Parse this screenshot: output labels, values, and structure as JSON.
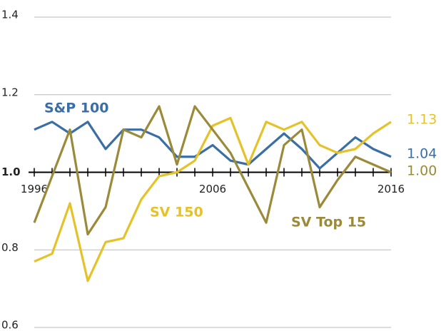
{
  "chart_data": {
    "type": "line",
    "x": [
      1996,
      1997,
      1998,
      1999,
      2000,
      2001,
      2002,
      2003,
      2004,
      2005,
      2006,
      2007,
      2008,
      2009,
      2010,
      2011,
      2012,
      2013,
      2014,
      2015,
      2016
    ],
    "xlim": [
      1996,
      2016
    ],
    "xticks": [
      1996,
      2006,
      2016
    ],
    "ylim": [
      0.6,
      1.4
    ],
    "yticks": [
      0.6,
      0.8,
      {
        "value": 1.0,
        "label": "1.0"
      },
      1.2,
      1.4
    ],
    "grid": true,
    "series": [
      {
        "name": "S&P 100",
        "color": "#3a6ea5",
        "end_label": "1.04",
        "values": [
          1.11,
          1.13,
          1.1,
          1.13,
          1.06,
          1.11,
          1.11,
          1.09,
          1.04,
          1.04,
          1.07,
          1.03,
          1.02,
          1.06,
          1.1,
          1.06,
          1.01,
          1.05,
          1.09,
          1.06,
          1.04
        ]
      },
      {
        "name": "SV 150",
        "color": "#e5c22a",
        "end_label": "1.13",
        "values": [
          0.77,
          0.79,
          0.92,
          0.72,
          0.82,
          0.83,
          0.93,
          0.99,
          1.0,
          1.03,
          1.12,
          1.14,
          1.02,
          1.13,
          1.11,
          1.13,
          1.07,
          1.05,
          1.06,
          1.1,
          1.13
        ]
      },
      {
        "name": "SV Top 15",
        "color": "#9a8a3a",
        "end_label": "1.00",
        "values": [
          0.87,
          0.99,
          1.11,
          0.84,
          0.91,
          1.11,
          1.09,
          1.17,
          1.02,
          1.17,
          1.11,
          1.05,
          0.96,
          0.87,
          1.07,
          1.11,
          0.91,
          0.98,
          1.04,
          1.02,
          1.0
        ]
      }
    ]
  }
}
